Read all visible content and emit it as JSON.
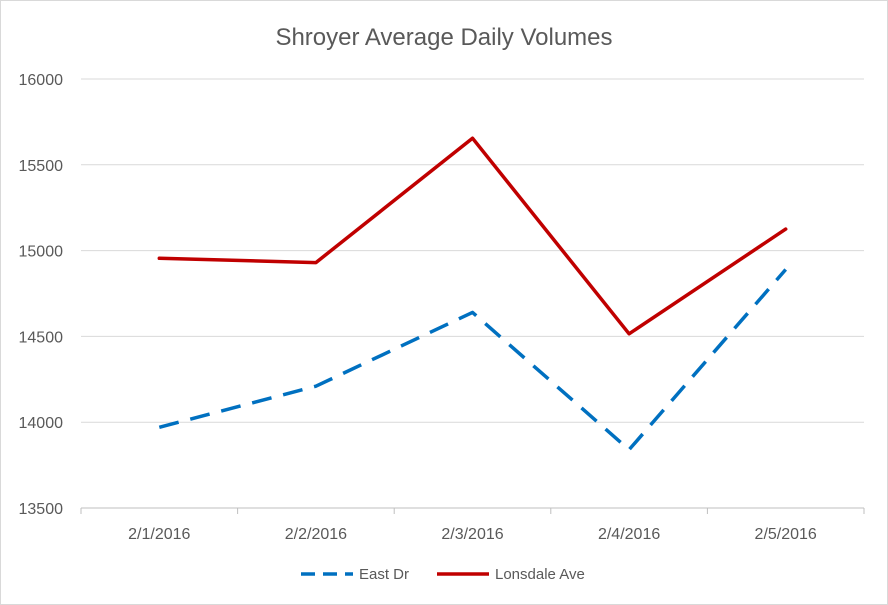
{
  "chart_data": {
    "type": "line",
    "title": "Shroyer Average Daily Volumes",
    "xlabel": "",
    "ylabel": "",
    "categories": [
      "2/1/2016",
      "2/2/2016",
      "2/3/2016",
      "2/4/2016",
      "2/5/2016"
    ],
    "ylim": [
      13500,
      16000
    ],
    "yticks": [
      13500,
      14000,
      14500,
      15000,
      15500,
      16000
    ],
    "grid": true,
    "legend_position": "bottom",
    "series": [
      {
        "name": "East Dr",
        "values": [
          13970,
          14210,
          14640,
          13840,
          14890
        ],
        "color": "#0070c0",
        "line_style": "dashed"
      },
      {
        "name": "Lonsdale Ave",
        "values": [
          14955,
          14930,
          15655,
          14515,
          15125
        ],
        "color": "#c00000",
        "line_style": "solid"
      }
    ]
  }
}
